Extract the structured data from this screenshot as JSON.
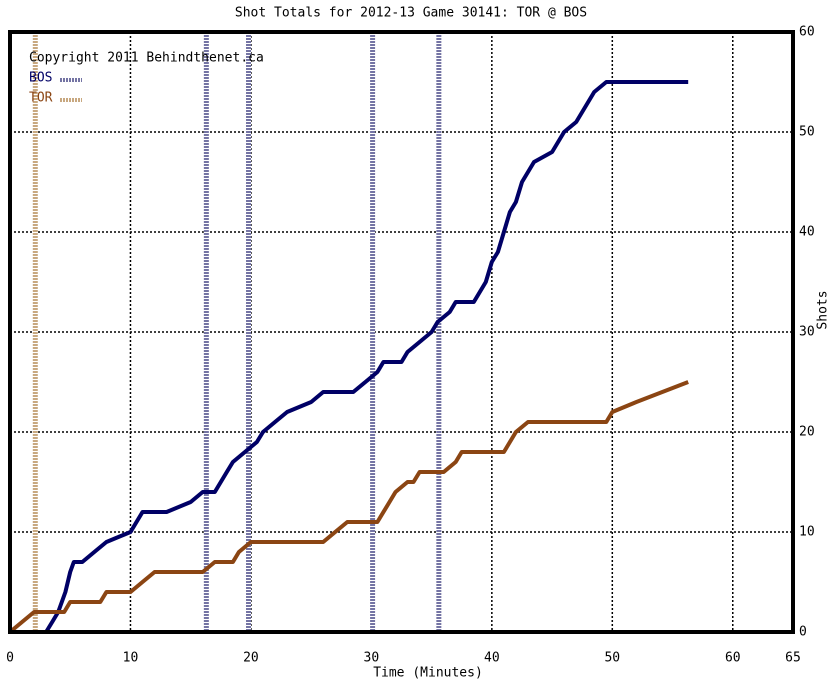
{
  "chart_data": {
    "type": "line",
    "title": "Shot Totals for 2012-13 Game 30141: TOR @ BOS",
    "annotation": "Copyright 2011 Behindthenet.ca",
    "xlabel": "Time (Minutes)",
    "ylabel": "Shots",
    "xlim": [
      0,
      65
    ],
    "ylim": [
      0,
      60
    ],
    "xticks": [
      0,
      10,
      20,
      30,
      40,
      50,
      60,
      65
    ],
    "yticks": [
      0,
      10,
      20,
      30,
      40,
      50,
      60
    ],
    "grid": true,
    "series": [
      {
        "name": "BOS",
        "color": "#000066",
        "goal_color": "#7474a4",
        "goals": [
          16.3,
          19.8,
          30.1,
          35.6
        ],
        "x": [
          0,
          3,
          3.5,
          4,
          4.3,
          4.6,
          5,
          5.3,
          6,
          7,
          8,
          9,
          10,
          10.5,
          11,
          13,
          15,
          16,
          17,
          17.5,
          18,
          18.5,
          19.5,
          20.5,
          21,
          22,
          23,
          25,
          26,
          28.5,
          29.5,
          30.5,
          31,
          32.5,
          33,
          34,
          35,
          35.5,
          36.5,
          37,
          38.5,
          39,
          39.5,
          40,
          40.5,
          41,
          41.5,
          42,
          42.5,
          43,
          43.5,
          45,
          45.5,
          46,
          47,
          48,
          48.5,
          49.5,
          56.3
        ],
        "values": [
          0,
          0,
          1,
          2,
          3,
          4,
          6,
          7,
          7,
          8,
          9,
          9.5,
          10,
          11,
          12,
          12,
          13,
          14,
          14,
          15,
          16,
          17,
          18,
          19,
          20,
          21,
          22,
          23,
          24,
          24,
          25,
          26,
          27,
          27,
          28,
          29,
          30,
          31,
          32,
          33,
          33,
          34,
          35,
          37,
          38,
          40,
          42,
          43,
          45,
          46,
          47,
          48,
          49,
          50,
          51,
          53,
          54,
          55,
          55
        ]
      },
      {
        "name": "TOR",
        "color": "#8b4513",
        "goal_color": "#c8a880",
        "goals": [
          2.1
        ],
        "x": [
          0,
          2,
          4.5,
          5,
          7.5,
          8,
          10,
          11,
          12,
          13,
          16,
          17,
          18.5,
          19,
          20,
          26,
          27,
          28,
          30.5,
          31.5,
          32,
          33,
          33.5,
          34,
          36,
          37,
          37.5,
          41,
          41.5,
          42,
          43,
          49.5,
          50,
          52,
          56.3
        ],
        "values": [
          0,
          2,
          2,
          3,
          3,
          4,
          4,
          5,
          6,
          6,
          6,
          7,
          7,
          8,
          9,
          9,
          10,
          11,
          11,
          13,
          14,
          15,
          15,
          16,
          16,
          17,
          18,
          18,
          19,
          20,
          21,
          21,
          22,
          23,
          25
        ]
      }
    ]
  }
}
